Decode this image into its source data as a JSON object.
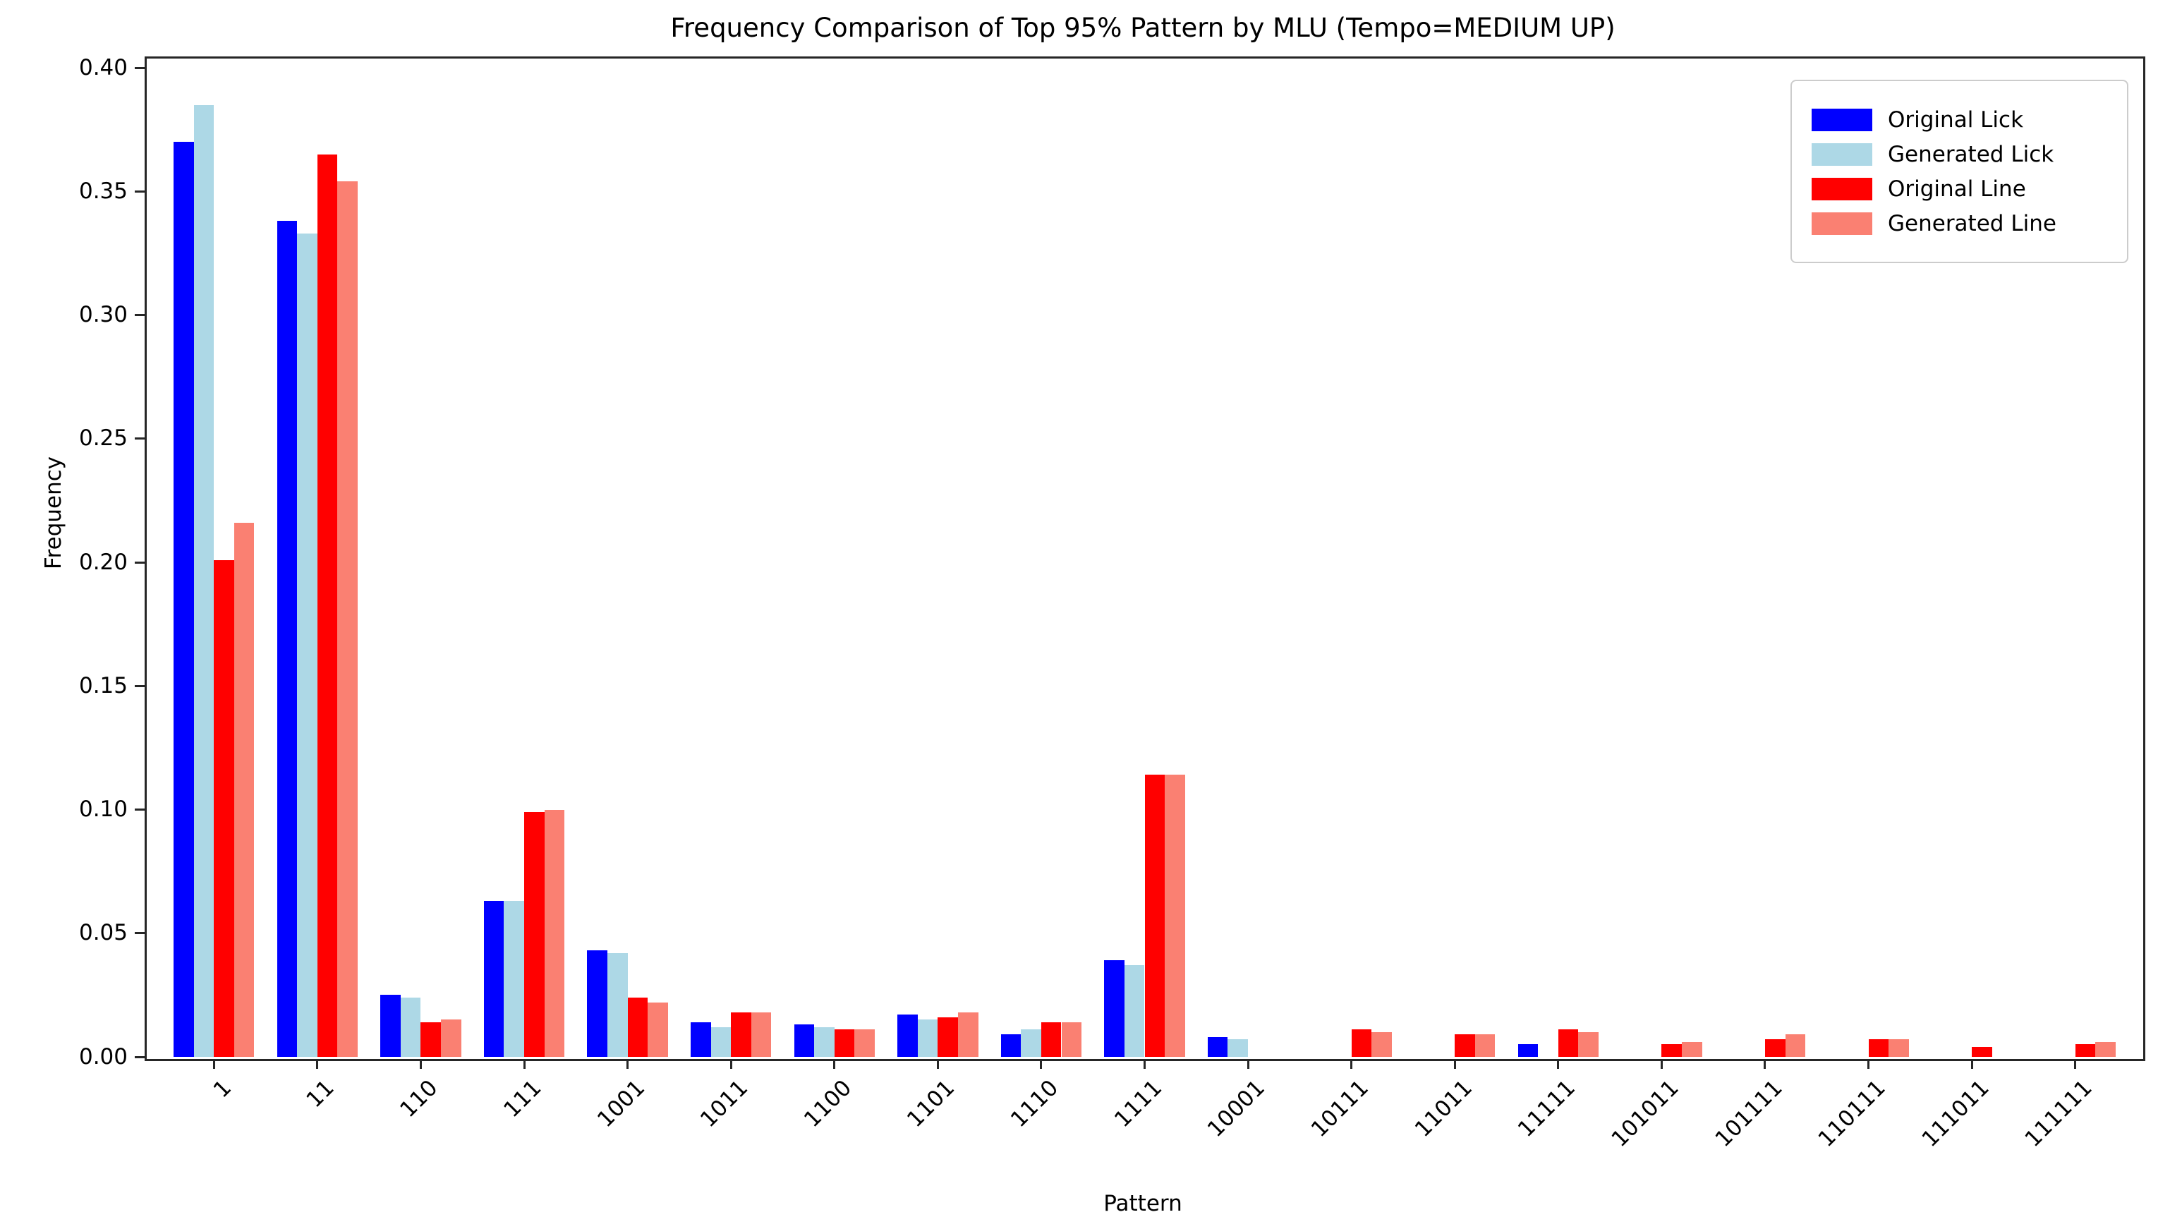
{
  "title": "Frequency Comparison of Top 95% Pattern by MLU (Tempo=MEDIUM UP)",
  "chart_data": {
    "type": "bar",
    "title": "Frequency Comparison of Top 95% Pattern by MLU (Tempo=MEDIUM UP)",
    "xlabel": "Pattern",
    "ylabel": "Frequency",
    "categories": [
      "1",
      "11",
      "110",
      "111",
      "1001",
      "1011",
      "1100",
      "1101",
      "1110",
      "1111",
      "10001",
      "10111",
      "11011",
      "11111",
      "101011",
      "101111",
      "110111",
      "111011",
      "111111"
    ],
    "series": [
      {
        "name": "Original Lick",
        "color": "#0000ff",
        "values": [
          0.37,
          0.338,
          0.025,
          0.063,
          0.043,
          0.014,
          0.013,
          0.017,
          0.009,
          0.039,
          0.008,
          0,
          0,
          0.005,
          0,
          0,
          0,
          0,
          0
        ]
      },
      {
        "name": "Generated Lick",
        "color": "#add8e6",
        "values": [
          0.385,
          0.333,
          0.024,
          0.063,
          0.042,
          0.012,
          0.012,
          0.015,
          0.011,
          0.037,
          0.007,
          0,
          0,
          0,
          0,
          0,
          0,
          0,
          0
        ]
      },
      {
        "name": "Original Line",
        "color": "#ff0000",
        "values": [
          0.201,
          0.365,
          0.014,
          0.099,
          0.024,
          0.018,
          0.011,
          0.016,
          0.014,
          0.114,
          0,
          0.011,
          0.009,
          0.011,
          0.005,
          0.007,
          0.007,
          0.004,
          0.005
        ]
      },
      {
        "name": "Generated Line",
        "color": "#fa8072",
        "values": [
          0.216,
          0.354,
          0.015,
          0.1,
          0.022,
          0.018,
          0.011,
          0.018,
          0.014,
          0.114,
          0,
          0.01,
          0.009,
          0.01,
          0.006,
          0.009,
          0.007,
          0,
          0.006
        ]
      }
    ],
    "yticks": [
      0.0,
      0.05,
      0.1,
      0.15,
      0.2,
      0.25,
      0.3,
      0.35,
      0.4
    ],
    "ytick_format_decimals": 2,
    "ylim": [
      0,
      0.4046
    ],
    "grid": false,
    "legend_position": "upper right",
    "axis_color": "#262626"
  }
}
